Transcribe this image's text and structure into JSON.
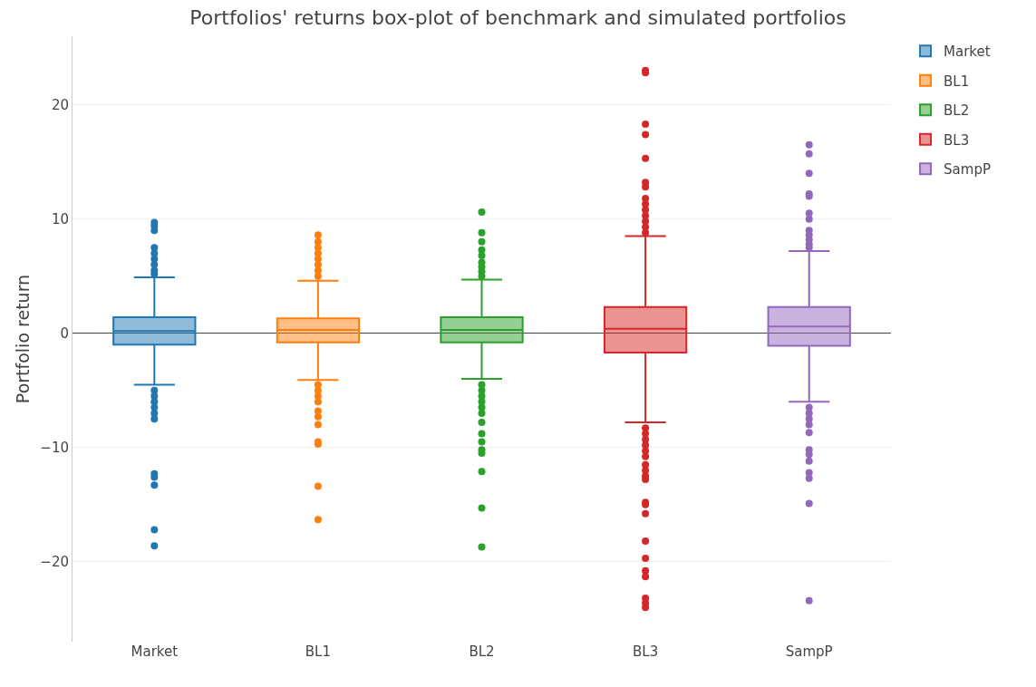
{
  "chart_data": {
    "type": "box",
    "title": "Portfolios' returns box-plot of benchmark and simulated portfolios",
    "ylabel": "Portfolio return",
    "categories": [
      "Market",
      "BL1",
      "BL2",
      "BL3",
      "SampP"
    ],
    "series": [
      {
        "name": "Market",
        "color": "#1f77b4",
        "boxes": [
          {
            "low": -4.5,
            "q1": -1.0,
            "median": 0.2,
            "q3": 1.4,
            "high": 4.9,
            "outliers": [
              9.7,
              9.4,
              9.0,
              7.5,
              7.0,
              6.5,
              6.0,
              5.5,
              5.2,
              -5.0,
              -5.5,
              -6.0,
              -6.5,
              -7.0,
              -7.5,
              -12.3,
              -12.6,
              -13.3,
              -17.2,
              -18.6
            ]
          },
          null,
          null,
          null,
          null
        ]
      },
      {
        "name": "BL1",
        "color": "#ff7f0e",
        "boxes": [
          null,
          {
            "low": -4.1,
            "q1": -0.8,
            "median": 0.3,
            "q3": 1.3,
            "high": 4.6,
            "outliers": [
              8.6,
              8.0,
              7.5,
              7.0,
              6.5,
              6.0,
              5.5,
              5.0,
              -4.5,
              -5.0,
              -5.5,
              -6.0,
              -6.8,
              -7.3,
              -8.0,
              -9.5,
              -9.7,
              -13.4,
              -16.3
            ]
          },
          null,
          null,
          null
        ]
      },
      {
        "name": "BL2",
        "color": "#2ca02c",
        "boxes": [
          null,
          null,
          {
            "low": -4.0,
            "q1": -0.8,
            "median": 0.3,
            "q3": 1.4,
            "high": 4.7,
            "outliers": [
              10.6,
              8.8,
              8.0,
              7.3,
              6.8,
              6.2,
              5.8,
              5.4,
              5.0,
              -4.5,
              -5.0,
              -5.5,
              -6.0,
              -6.5,
              -7.0,
              -7.8,
              -8.8,
              -9.5,
              -10.2,
              -10.5,
              -12.1,
              -15.3,
              -18.7
            ]
          },
          null,
          null
        ]
      },
      {
        "name": "BL3",
        "color": "#d62728",
        "boxes": [
          null,
          null,
          null,
          {
            "low": -7.8,
            "q1": -1.7,
            "median": 0.4,
            "q3": 2.3,
            "high": 8.5,
            "outliers": [
              23.0,
              22.8,
              18.3,
              17.4,
              15.3,
              13.2,
              12.8,
              11.8,
              11.3,
              10.8,
              10.3,
              9.8,
              9.3,
              8.8,
              -8.3,
              -8.8,
              -9.3,
              -9.8,
              -10.3,
              -10.8,
              -11.5,
              -12.0,
              -12.5,
              -12.8,
              -14.8,
              -15.0,
              -15.8,
              -18.2,
              -19.7,
              -20.8,
              -21.3,
              -23.2,
              -23.6,
              -24.0
            ]
          },
          null
        ]
      },
      {
        "name": "SampP",
        "color": "#9467bd",
        "boxes": [
          null,
          null,
          null,
          null,
          {
            "low": -6.0,
            "q1": -1.1,
            "median": 0.6,
            "q3": 2.3,
            "high": 7.2,
            "outliers": [
              16.5,
              15.7,
              14.0,
              12.2,
              12.0,
              10.5,
              10.0,
              9.0,
              8.6,
              8.2,
              7.8,
              7.5,
              -6.5,
              -7.0,
              -7.5,
              -8.0,
              -8.7,
              -10.2,
              -10.6,
              -11.2,
              -12.2,
              -12.7,
              -14.9,
              -23.4
            ]
          }
        ]
      }
    ],
    "ylim": [
      -27,
      26
    ],
    "yticks": [
      -20,
      -10,
      0,
      10,
      20
    ],
    "grid": "y",
    "legend": "top right"
  }
}
